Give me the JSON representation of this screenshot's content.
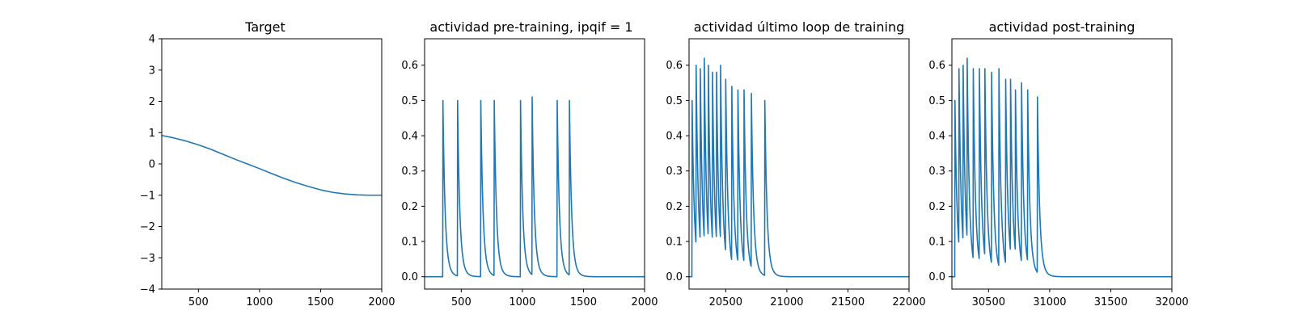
{
  "chart_data": [
    {
      "type": "line",
      "title": "Target",
      "xlabel": "",
      "ylabel": "",
      "xlim": [
        200,
        2000
      ],
      "ylim": [
        -4,
        4
      ],
      "xticks": [
        500,
        1000,
        1500,
        2000
      ],
      "yticks": [
        -4,
        -3,
        -2,
        -1,
        0,
        1,
        2,
        3,
        4
      ],
      "grid": false,
      "color": "#1f77b4",
      "series": [
        {
          "kind": "curve",
          "x": [
            200,
            300,
            400,
            500,
            600,
            700,
            800,
            900,
            1000,
            1100,
            1200,
            1300,
            1400,
            1500,
            1600,
            1700,
            1800,
            1900,
            2000
          ],
          "y": [
            0.91,
            0.83,
            0.73,
            0.61,
            0.47,
            0.31,
            0.15,
            0.0,
            -0.15,
            -0.31,
            -0.46,
            -0.6,
            -0.72,
            -0.83,
            -0.91,
            -0.96,
            -0.99,
            -1.0,
            -1.0
          ]
        }
      ]
    },
    {
      "type": "line",
      "title": "actividad pre-training, ipqif = 1",
      "xlabel": "",
      "ylabel": "",
      "xlim": [
        200,
        2000
      ],
      "ylim": [
        -0.035,
        0.675
      ],
      "xticks": [
        500,
        1000,
        1500,
        2000
      ],
      "yticks": [
        0.0,
        0.1,
        0.2,
        0.3,
        0.4,
        0.5,
        0.6
      ],
      "grid": false,
      "color": "#1f77b4",
      "series": [
        {
          "kind": "spikes",
          "x_start": 200,
          "x_end": 2000,
          "spikes": [
            {
              "t": 350,
              "peak": 0.5
            },
            {
              "t": 470,
              "peak": 0.5
            },
            {
              "t": 660,
              "peak": 0.5
            },
            {
              "t": 770,
              "peak": 0.5
            },
            {
              "t": 985,
              "peak": 0.5
            },
            {
              "t": 1080,
              "peak": 0.51
            },
            {
              "t": 1285,
              "peak": 0.5
            },
            {
              "t": 1385,
              "peak": 0.5
            }
          ]
        }
      ]
    },
    {
      "type": "line",
      "title": "actividad último loop de training",
      "xlabel": "",
      "ylabel": "",
      "xlim": [
        20200,
        22000
      ],
      "ylim": [
        -0.035,
        0.675
      ],
      "xticks": [
        20500,
        21000,
        21500,
        22000
      ],
      "yticks": [
        0.0,
        0.1,
        0.2,
        0.3,
        0.4,
        0.5,
        0.6
      ],
      "grid": false,
      "color": "#1f77b4",
      "series": [
        {
          "kind": "spikes",
          "x_start": 20200,
          "x_end": 22000,
          "spikes": [
            {
              "t": 20225,
              "peak": 0.5
            },
            {
              "t": 20258,
              "peak": 0.6
            },
            {
              "t": 20292,
              "peak": 0.59
            },
            {
              "t": 20325,
              "peak": 0.62
            },
            {
              "t": 20358,
              "peak": 0.6
            },
            {
              "t": 20392,
              "peak": 0.58
            },
            {
              "t": 20425,
              "peak": 0.58
            },
            {
              "t": 20458,
              "peak": 0.6
            },
            {
              "t": 20500,
              "peak": 0.56
            },
            {
              "t": 20550,
              "peak": 0.54
            },
            {
              "t": 20600,
              "peak": 0.53
            },
            {
              "t": 20650,
              "peak": 0.53
            },
            {
              "t": 20710,
              "peak": 0.52
            },
            {
              "t": 20820,
              "peak": 0.5
            }
          ]
        }
      ]
    },
    {
      "type": "line",
      "title": "actividad post-training",
      "xlabel": "",
      "ylabel": "",
      "xlim": [
        30200,
        32000
      ],
      "ylim": [
        -0.035,
        0.675
      ],
      "xticks": [
        30500,
        31000,
        31500,
        32000
      ],
      "yticks": [
        0.0,
        0.1,
        0.2,
        0.3,
        0.4,
        0.5,
        0.6
      ],
      "grid": false,
      "color": "#1f77b4",
      "series": [
        {
          "kind": "spikes",
          "x_start": 30200,
          "x_end": 32000,
          "spikes": [
            {
              "t": 30225,
              "peak": 0.5
            },
            {
              "t": 30258,
              "peak": 0.59
            },
            {
              "t": 30292,
              "peak": 0.6
            },
            {
              "t": 30325,
              "peak": 0.62
            },
            {
              "t": 30375,
              "peak": 0.59
            },
            {
              "t": 30425,
              "peak": 0.59
            },
            {
              "t": 30470,
              "peak": 0.59
            },
            {
              "t": 30525,
              "peak": 0.58
            },
            {
              "t": 30585,
              "peak": 0.59
            },
            {
              "t": 30640,
              "peak": 0.56
            },
            {
              "t": 30680,
              "peak": 0.56
            },
            {
              "t": 30720,
              "peak": 0.53
            },
            {
              "t": 30770,
              "peak": 0.55
            },
            {
              "t": 30820,
              "peak": 0.53
            },
            {
              "t": 30900,
              "peak": 0.51
            }
          ]
        }
      ]
    }
  ]
}
